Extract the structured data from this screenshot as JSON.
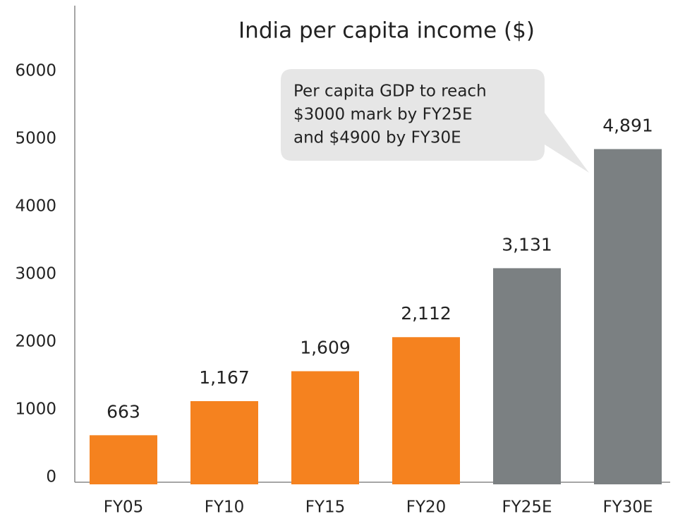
{
  "chart_data": {
    "type": "bar",
    "title": "India per capita income ($)",
    "categories": [
      "FY05",
      "FY10",
      "FY15",
      "FY20",
      "FY25E",
      "FY30E"
    ],
    "values": [
      663,
      1167,
      1609,
      2112,
      3131,
      4891
    ],
    "value_labels": [
      "663",
      "1,167",
      "1,609",
      "2,112",
      "3,131",
      "4,891"
    ],
    "colors": [
      "#f5821f",
      "#f5821f",
      "#f5821f",
      "#f5821f",
      "#7b8082",
      "#7b8082"
    ],
    "ylim": [
      0,
      6000
    ],
    "yticks": [
      0,
      1000,
      2000,
      3000,
      4000,
      5000,
      6000
    ],
    "grid": false,
    "annotation": [
      "Per capita GDP to reach",
      "$3000 mark by FY25E",
      "and $4900 by FY30E"
    ]
  }
}
